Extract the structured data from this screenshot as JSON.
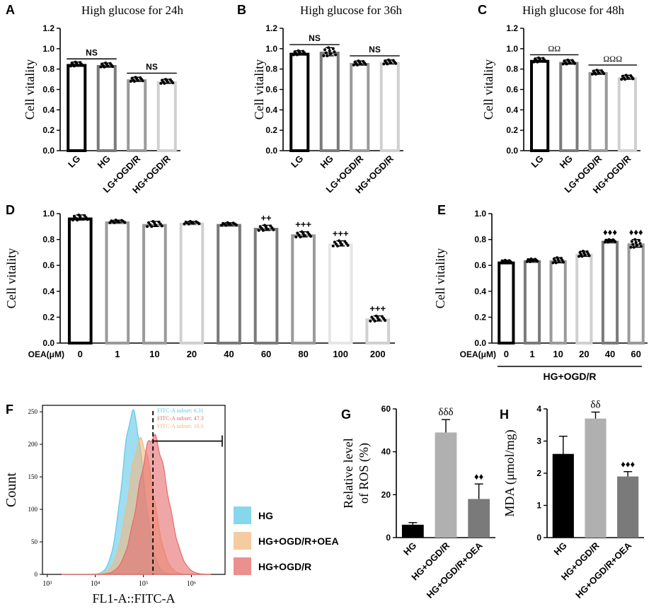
{
  "figure": {
    "colors": {
      "black": "#000000",
      "dark_gray": "#7a7a7a",
      "mid_gray": "#9a9a9a",
      "light_gray": "#d0d0d0",
      "pale_gray": "#e6e6e6",
      "teal": "#5ec8e6",
      "orange": "#f2b982",
      "red": "#e66a6a"
    }
  },
  "chart_data": [
    {
      "id": "A",
      "panel_label": "A",
      "type": "bar",
      "title": "High glucose for 24h",
      "ylabel": "Cell vitality",
      "xlabel": "",
      "categories": [
        "LG",
        "HG",
        "LG+OGD/R",
        "HG+OGD/R"
      ],
      "values": [
        0.85,
        0.84,
        0.7,
        0.68
      ],
      "errors": [
        0.02,
        0.02,
        0.02,
        0.02
      ],
      "ylim": [
        0,
        1.2
      ],
      "yticks": [
        "0.0",
        "0.2",
        "0.4",
        "0.6",
        "0.8",
        "1.0",
        "1.2"
      ],
      "annotations": [
        {
          "text": "NS",
          "from": 0,
          "to": 1,
          "y": 0.9
        },
        {
          "text": "NS",
          "from": 2,
          "to": 3,
          "y": 0.76
        }
      ]
    },
    {
      "id": "B",
      "panel_label": "B",
      "type": "bar",
      "title": "High glucose for 36h",
      "ylabel": "Cell vitality",
      "xlabel": "",
      "categories": [
        "LG",
        "HG",
        "LG+OGD/R",
        "HG+OGD/R"
      ],
      "values": [
        0.96,
        0.97,
        0.86,
        0.87
      ],
      "errors": [
        0.02,
        0.04,
        0.02,
        0.02
      ],
      "ylim": [
        0,
        1.2
      ],
      "yticks": [
        "0.0",
        "0.2",
        "0.4",
        "0.6",
        "0.8",
        "1.0",
        "1.2"
      ],
      "annotations": [
        {
          "text": "NS",
          "from": 0,
          "to": 1,
          "y": 1.04
        },
        {
          "text": "NS",
          "from": 2,
          "to": 3,
          "y": 0.93
        }
      ]
    },
    {
      "id": "C",
      "panel_label": "C",
      "type": "bar",
      "title": "High glucose for 48h",
      "ylabel": "Cell vitality",
      "xlabel": "",
      "categories": [
        "LG",
        "HG",
        "LG+OGD/R",
        "HG+OGD/R"
      ],
      "values": [
        0.89,
        0.87,
        0.77,
        0.72
      ],
      "errors": [
        0.02,
        0.02,
        0.02,
        0.02
      ],
      "ylim": [
        0,
        1.2
      ],
      "yticks": [
        "0.0",
        "0.2",
        "0.4",
        "0.6",
        "0.8",
        "1.0",
        "1.2"
      ],
      "annotations": [
        {
          "text": "ΩΩ",
          "from": 0,
          "to": 1,
          "y": 0.94
        },
        {
          "text": "ΩΩΩ",
          "from": 2,
          "to": 3,
          "y": 0.84
        }
      ]
    },
    {
      "id": "D",
      "panel_label": "D",
      "type": "bar",
      "title": "",
      "ylabel": "Cell vitality",
      "xlabel": "",
      "axis_prefix": "OEA(μM)",
      "categories": [
        "0",
        "1",
        "10",
        "20",
        "40",
        "60",
        "80",
        "100",
        "200"
      ],
      "values": [
        0.97,
        0.94,
        0.92,
        0.93,
        0.92,
        0.89,
        0.84,
        0.77,
        0.19
      ],
      "errors": [
        0.02,
        0.01,
        0.02,
        0.01,
        0.01,
        0.02,
        0.02,
        0.02,
        0.02
      ],
      "marks": [
        "",
        "",
        "",
        "",
        "",
        "++",
        "+++",
        "+++",
        "+++"
      ],
      "ylim": [
        0,
        1.0
      ],
      "yticks": [
        "0.0",
        "0.2",
        "0.4",
        "0.6",
        "0.8",
        "1.0"
      ]
    },
    {
      "id": "E",
      "panel_label": "E",
      "type": "bar",
      "title": "",
      "ylabel": "Cell vitality",
      "xlabel": "",
      "axis_prefix": "OEA(μM)",
      "group_label": "HG+OGD/R",
      "categories": [
        "0",
        "1",
        "10",
        "20",
        "40",
        "60"
      ],
      "values": [
        0.63,
        0.64,
        0.64,
        0.69,
        0.79,
        0.77
      ],
      "errors": [
        0.01,
        0.01,
        0.02,
        0.02,
        0.01,
        0.03
      ],
      "marks": [
        "",
        "",
        "",
        "",
        "♦♦♦",
        "♦♦♦"
      ],
      "ylim": [
        0,
        1.0
      ],
      "yticks": [
        "0.0",
        "0.2",
        "0.4",
        "0.6",
        "0.8",
        "1.0"
      ]
    },
    {
      "id": "F",
      "panel_label": "F",
      "type": "area",
      "title": "",
      "ylabel": "Count",
      "xlabel": "FL1-A::FITC-A",
      "ylim": [
        0,
        260
      ],
      "yticks": [
        "0",
        "50",
        "100",
        "150",
        "200",
        "250"
      ],
      "xticks": [
        "10³",
        "10⁴",
        "10⁵",
        "10⁶"
      ],
      "gate_text": [
        {
          "text": "FITC-A subset: 6.31",
          "color": "#5ec8e6"
        },
        {
          "text": "FITC-A subset: 47.3",
          "color": "#e66a6a"
        },
        {
          "text": "FITC-A subset: 16.6",
          "color": "#f2b982"
        }
      ],
      "series": [
        {
          "name": "HG",
          "color": "#5ec8e6",
          "peak": 4.78,
          "height": 248,
          "sigma": 0.22
        },
        {
          "name": "HG+OGD/R+OEA",
          "color": "#f2b982",
          "peak": 4.95,
          "height": 205,
          "sigma": 0.26
        },
        {
          "name": "HG+OGD/R",
          "color": "#e66a6a",
          "peak": 5.2,
          "height": 212,
          "sigma": 0.3
        }
      ]
    },
    {
      "id": "G",
      "panel_label": "G",
      "type": "bar",
      "title": "",
      "ylabel": "Relative level of ROS (%)",
      "ylabel_lines": [
        "Relative level",
        "of ROS (%)"
      ],
      "xlabel": "",
      "categories": [
        "HG",
        "HG+OGD/R",
        "HG+OGD/R+OEA"
      ],
      "values": [
        6,
        49,
        18
      ],
      "errors": [
        1,
        6,
        7
      ],
      "marks": [
        "",
        "δδδ",
        "♦♦"
      ],
      "ylim": [
        0,
        60
      ],
      "yticks": [
        "0",
        "20",
        "40",
        "60"
      ]
    },
    {
      "id": "H",
      "panel_label": "H",
      "type": "bar",
      "title": "",
      "ylabel": "MDA (μmol/mg)",
      "xlabel": "",
      "categories": [
        "HG",
        "HG+OGD/R",
        "HG+OGD/R+OEA"
      ],
      "values": [
        2.6,
        3.7,
        1.9
      ],
      "errors": [
        0.55,
        0.2,
        0.15
      ],
      "marks": [
        "",
        "δδ",
        "♦♦♦"
      ],
      "ylim": [
        0,
        4
      ],
      "yticks": [
        "0",
        "1",
        "2",
        "3",
        "4"
      ]
    }
  ]
}
